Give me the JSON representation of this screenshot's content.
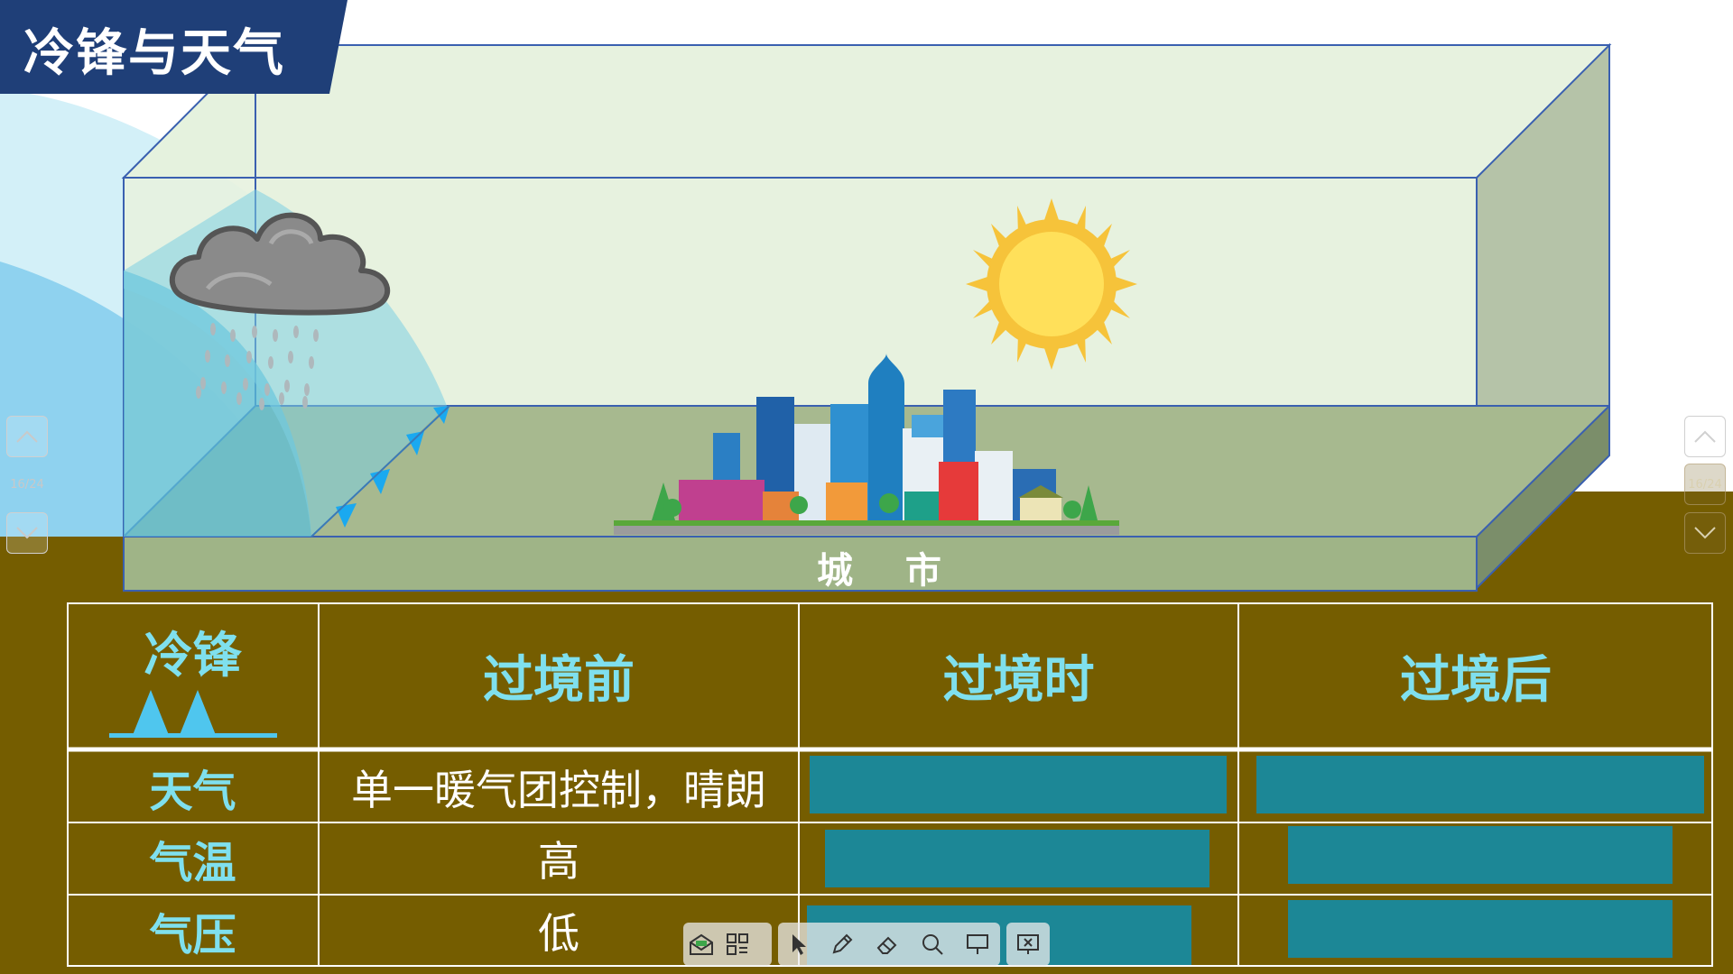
{
  "title": "冷锋与天气",
  "scene": {
    "city_label": "城 市"
  },
  "nav": {
    "left_page": "16/24",
    "right_page": "16/24"
  },
  "table": {
    "corner_label": "冷锋",
    "headers": [
      "过境前",
      "过境时",
      "过境后"
    ],
    "rows": [
      {
        "label": "天气",
        "before": "单一暖气团控制，晴朗"
      },
      {
        "label": "气温",
        "before": "高"
      },
      {
        "label": "气压",
        "before": "低"
      }
    ]
  },
  "toolbar": {
    "icons": [
      "inbox-icon",
      "apps-grid-icon",
      "pointer-icon",
      "pen-icon",
      "eraser-icon",
      "search-icon",
      "presentation-icon",
      "exit-slideshow-icon"
    ]
  },
  "colors": {
    "banner": "#1f3f78",
    "ground": "#755d00",
    "table_header_text": "#7fe0ee",
    "answer_block": "#1c8796",
    "sky_box": "#e7f2df",
    "cold_air": "#7fd0ea"
  }
}
